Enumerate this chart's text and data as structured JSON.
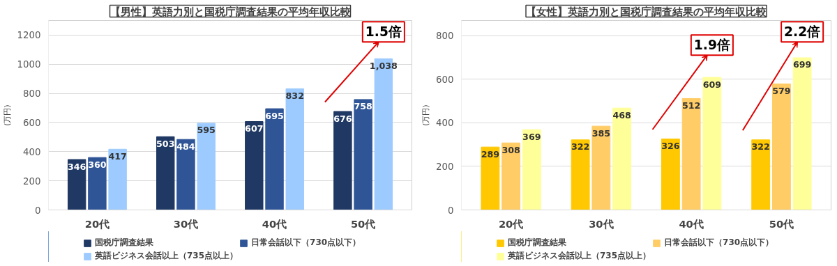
{
  "chart_data": [
    {
      "type": "bar",
      "title": "【男性】英語力別と国税庁調査結果の平均年収比較",
      "ylabel": "(万円)",
      "categories": [
        "20代",
        "30代",
        "40代",
        "50代"
      ],
      "series": [
        {
          "name": "国税庁調査結果",
          "color": "#1f3864",
          "values": [
            346,
            503,
            607,
            676
          ]
        },
        {
          "name": "日常会話以下（730点以下）",
          "color": "#2f5597",
          "values": [
            360,
            484,
            695,
            758
          ]
        },
        {
          "name": "英語ビジネス会話以上（735点以上）",
          "color": "#9dcbff",
          "values": [
            417,
            595,
            832,
            1038
          ],
          "value_labels": [
            "417",
            "595",
            "832",
            "1,038"
          ]
        }
      ],
      "ylim": [
        0,
        1300
      ],
      "yticks": [
        0,
        200,
        400,
        600,
        800,
        1000,
        1200
      ],
      "grid": "y",
      "legend": "bottom",
      "data_labels": true,
      "annotations": [
        "1.5倍"
      ]
    },
    {
      "type": "bar",
      "title": "【女性】英語力別と国税庁調査結果の平均年収比較",
      "ylabel": "(万円)",
      "categories": [
        "20代",
        "30代",
        "40代",
        "50代"
      ],
      "series": [
        {
          "name": "国税庁調査結果",
          "color": "#ffc800",
          "values": [
            289,
            322,
            326,
            322
          ]
        },
        {
          "name": "日常会話以下（730点以下）",
          "color": "#ffcc66",
          "values": [
            308,
            385,
            512,
            579
          ]
        },
        {
          "name": "英語ビジネス会話以上（735点以上）",
          "color": "#ffff99",
          "values": [
            369,
            468,
            609,
            699
          ]
        }
      ],
      "ylim": [
        0,
        870
      ],
      "yticks": [
        0,
        200,
        400,
        600,
        800
      ],
      "grid": "y",
      "legend": "bottom",
      "data_labels": true,
      "annotations": [
        "1.9倍",
        "2.2倍"
      ]
    }
  ]
}
